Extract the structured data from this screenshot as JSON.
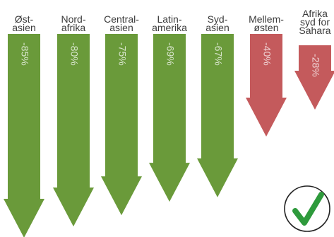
{
  "chart_data": {
    "type": "bar",
    "title": "",
    "categories": [
      [
        "Øst-",
        "asien"
      ],
      [
        "Nord-",
        "afrika"
      ],
      [
        "Central-",
        "asien"
      ],
      [
        "Latin-",
        "amerika"
      ],
      [
        "Syd-",
        "asien"
      ],
      [
        "Mellem-",
        "østen"
      ],
      [
        "Afrika",
        "syd for",
        "Sahara"
      ]
    ],
    "values": [
      -85,
      -80,
      -75,
      -69,
      -67,
      -40,
      -28
    ],
    "value_labels": [
      "-85%",
      "-80%",
      "-75%",
      "-69%",
      "-67%",
      "-40%",
      "-28%"
    ],
    "ylim": [
      -85,
      0
    ],
    "colors": [
      "#6a9a3a",
      "#6a9a3a",
      "#6a9a3a",
      "#6a9a3a",
      "#6a9a3a",
      "#c45a5c",
      "#c45a5c"
    ],
    "legend": "none",
    "grid": false
  },
  "badge": {
    "icon": "check-mark-icon",
    "color": "#2e9a3c"
  }
}
